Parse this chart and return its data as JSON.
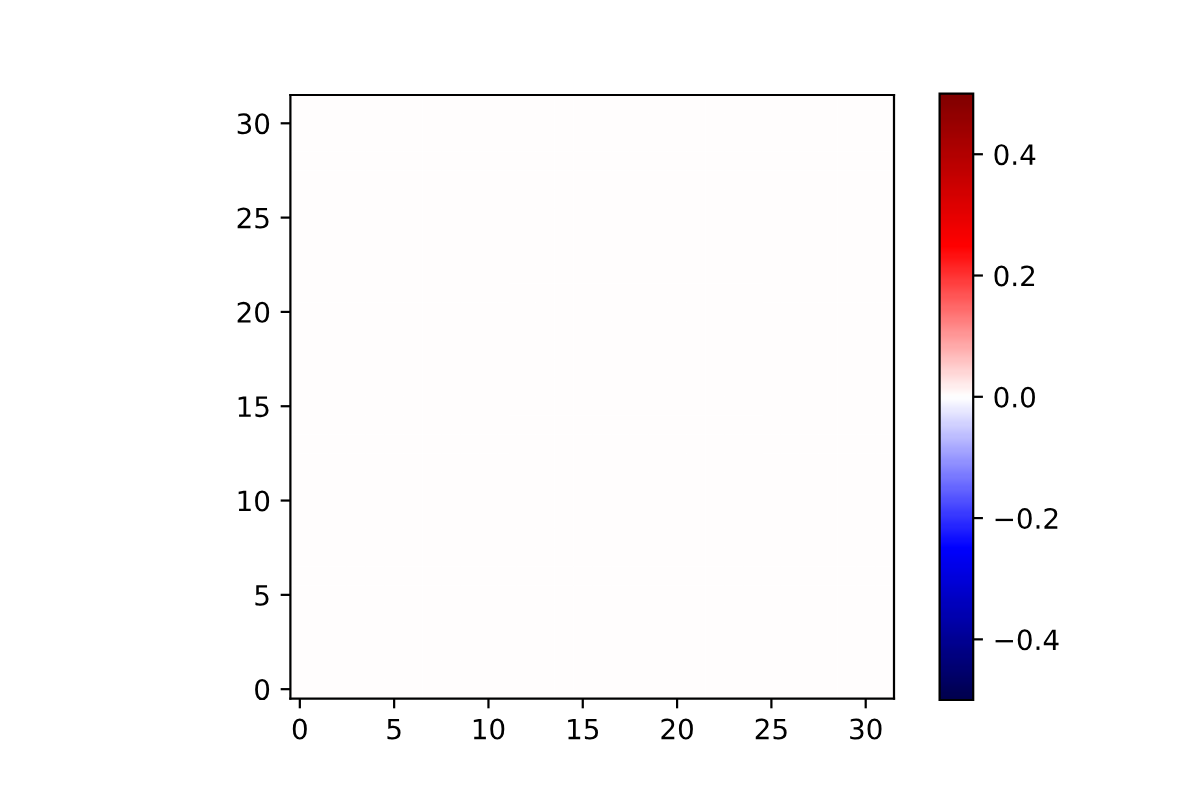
{
  "chart_data": {
    "type": "heatmap",
    "categories": [
      "0",
      null,
      null,
      null,
      null,
      "5",
      null,
      null,
      null,
      null,
      "10",
      null,
      null,
      null,
      null,
      "15",
      null,
      null,
      null,
      null,
      "20",
      null,
      null,
      null,
      null,
      "25",
      null,
      null,
      null,
      null,
      "30",
      null
    ],
    "y_categories": [
      null,
      "30",
      null,
      null,
      null,
      null,
      "25",
      null,
      null,
      null,
      null,
      "20",
      null,
      null,
      null,
      null,
      "15",
      null,
      null,
      null,
      null,
      "10",
      null,
      null,
      null,
      null,
      "5",
      null,
      null,
      null,
      null,
      "0"
    ],
    "cells": [
      [
        0,
        0,
        0,
        0,
        0,
        0,
        0,
        0,
        0,
        0,
        0,
        0,
        0,
        0,
        0,
        0,
        0,
        0,
        0,
        0,
        0,
        0,
        0,
        0,
        0,
        0,
        0,
        0,
        0,
        0,
        0,
        0
      ],
      [
        0,
        0,
        0,
        0,
        0,
        0,
        0,
        0,
        0,
        0,
        0,
        0,
        0,
        0,
        0,
        0,
        0,
        0,
        0,
        0,
        0,
        0,
        0,
        0,
        0,
        0,
        0,
        0,
        0,
        0,
        0,
        0
      ],
      [
        0,
        0,
        0,
        0,
        0,
        0,
        0,
        0,
        0,
        0,
        0,
        0,
        0,
        0,
        0,
        0,
        0,
        0,
        0,
        0,
        0,
        0,
        0,
        0,
        0,
        0,
        0,
        0,
        0,
        0,
        0,
        0
      ],
      [
        0,
        0,
        0,
        0,
        0,
        0,
        0,
        0,
        0,
        0,
        0,
        0,
        0,
        0,
        0,
        0,
        0,
        0,
        0,
        0,
        0,
        0,
        0,
        0,
        0,
        0,
        0,
        0,
        0,
        0,
        0,
        0
      ],
      [
        0,
        0,
        0,
        0,
        0,
        0,
        0,
        0,
        0,
        0,
        0,
        0,
        0,
        0,
        0,
        0,
        0,
        0,
        0,
        0,
        0,
        0,
        0,
        0,
        0,
        0,
        0,
        0,
        0,
        0,
        0,
        0
      ],
      [
        0,
        0,
        0,
        0,
        0,
        0,
        0,
        0,
        0,
        0,
        0,
        0,
        0,
        0,
        0,
        0,
        0,
        0,
        0,
        0,
        0,
        0,
        0,
        0,
        0,
        0,
        0,
        0,
        0,
        0,
        0,
        0
      ],
      [
        0,
        0,
        0,
        0,
        0,
        0,
        0,
        0,
        0,
        0,
        0,
        0,
        0,
        0,
        0,
        0,
        0,
        0,
        0,
        0,
        0,
        0,
        0,
        0,
        0,
        0,
        0,
        0,
        0,
        0,
        0,
        0
      ],
      [
        0,
        0,
        0,
        0,
        0,
        0,
        0,
        0,
        0,
        0,
        0,
        0,
        0,
        0,
        0,
        0,
        0,
        0,
        0,
        0,
        0,
        0,
        0,
        0,
        0,
        0,
        0,
        0,
        0,
        0,
        0,
        0
      ],
      [
        0,
        0,
        0,
        0,
        0,
        0,
        0,
        0,
        0,
        0,
        0,
        0,
        0,
        0,
        0,
        0,
        0,
        0,
        0,
        0,
        0,
        0,
        0,
        0,
        0,
        0,
        0,
        0,
        0,
        0,
        0,
        0
      ],
      [
        0,
        0,
        0,
        0,
        0,
        0,
        0,
        0,
        0,
        0,
        0,
        0,
        0,
        0,
        0,
        0,
        0,
        0,
        0,
        0,
        0,
        0,
        0,
        0,
        0,
        0,
        0,
        0,
        0,
        0,
        0,
        0
      ],
      [
        0,
        0,
        0,
        0,
        0,
        0,
        0,
        0,
        0,
        0,
        0,
        0,
        0,
        0,
        0,
        0,
        0,
        0,
        0,
        0,
        0,
        0,
        0,
        0,
        0,
        0,
        0,
        0,
        0,
        0,
        0,
        0
      ],
      [
        0,
        0,
        0,
        0,
        0,
        0,
        0,
        0,
        0,
        0,
        0,
        0,
        0,
        0,
        0,
        0,
        0,
        0,
        0,
        0,
        0,
        0,
        0,
        0,
        0,
        0,
        0,
        0,
        0,
        0,
        0,
        0
      ],
      [
        0,
        0,
        0,
        0,
        0,
        0,
        0,
        0,
        0,
        0,
        0,
        0,
        0,
        0,
        0,
        0,
        0,
        0,
        0,
        0,
        0,
        0,
        0,
        0,
        0,
        0,
        0,
        0,
        0,
        0,
        0,
        0
      ],
      [
        0,
        0,
        0,
        0,
        0,
        0,
        0,
        0,
        0,
        0,
        0,
        0,
        0,
        0,
        0,
        0,
        0,
        0,
        0,
        0,
        0,
        0,
        0,
        0,
        0,
        0,
        0,
        0,
        0,
        0,
        0,
        0
      ],
      [
        0,
        0,
        0,
        0,
        0,
        0,
        0,
        0,
        0,
        0,
        0,
        0,
        0,
        0,
        0,
        0,
        0,
        0,
        0,
        0,
        0,
        0,
        0,
        0,
        0,
        0,
        0,
        0,
        0,
        0,
        0,
        0
      ],
      [
        0,
        0,
        0,
        0,
        0,
        0,
        0,
        0,
        0,
        0,
        0,
        0,
        0,
        0,
        0,
        0,
        0,
        0,
        0,
        0,
        0,
        0,
        0,
        0,
        0,
        0,
        0,
        0,
        0,
        0,
        0,
        0
      ],
      [
        0,
        0,
        0,
        0,
        0,
        0,
        0,
        0,
        0,
        0,
        0,
        0,
        0,
        0,
        0,
        0,
        0,
        0,
        0,
        0,
        0,
        0,
        0,
        0,
        0,
        0,
        0,
        0,
        0,
        0,
        0,
        0
      ],
      [
        0,
        0,
        0,
        0,
        0,
        0,
        0,
        0,
        0,
        0,
        0,
        0,
        0,
        0,
        0,
        0,
        0,
        0,
        0,
        0,
        0,
        0,
        0,
        0,
        0,
        0,
        0,
        0,
        0,
        0,
        0,
        0
      ],
      [
        0,
        0,
        0,
        0,
        0,
        0,
        0,
        0,
        0,
        0,
        0,
        0,
        0,
        0,
        0,
        0,
        0,
        0,
        0,
        0,
        0,
        0,
        0,
        0,
        0,
        0,
        0,
        0,
        0,
        0,
        0,
        0
      ],
      [
        0,
        0,
        0,
        0,
        0,
        0,
        0,
        0,
        0,
        0,
        0,
        0,
        0,
        0,
        0,
        0,
        0,
        0,
        0,
        0,
        0,
        0,
        0,
        0,
        0,
        0,
        0,
        0,
        0,
        0,
        0,
        0
      ],
      [
        0,
        0,
        0,
        0,
        0,
        0,
        0,
        0,
        0,
        0,
        0,
        0,
        0,
        0,
        0,
        0,
        0,
        0,
        0,
        0,
        0,
        0,
        0,
        0,
        0,
        0,
        0,
        0,
        0,
        0,
        0,
        0
      ],
      [
        0,
        0,
        0,
        0,
        0,
        0,
        0,
        0,
        0,
        0,
        0,
        0,
        0,
        0,
        0,
        0,
        0,
        0,
        0,
        0,
        0,
        0,
        0,
        0,
        0,
        0,
        0,
        0,
        0,
        0,
        0,
        0
      ],
      [
        0,
        0,
        0,
        0,
        0,
        0,
        0,
        0,
        0,
        0,
        0,
        0,
        0,
        0,
        0,
        0,
        0,
        0,
        0,
        0,
        0,
        0,
        0,
        0,
        0,
        0,
        0,
        0,
        0,
        0,
        0,
        0
      ],
      [
        0,
        0,
        0,
        0,
        0,
        0,
        0,
        0,
        0,
        0,
        0,
        0,
        0,
        0,
        0,
        0,
        0,
        0,
        0,
        0,
        0,
        0,
        0,
        0,
        0,
        0,
        0,
        0,
        0,
        0,
        0,
        0
      ],
      [
        0,
        0,
        0,
        0,
        0,
        0,
        0,
        0,
        0,
        0,
        0,
        0,
        0,
        0,
        0,
        0,
        0,
        0,
        0,
        0,
        0,
        0,
        0,
        0,
        0,
        0,
        0,
        0,
        0,
        0,
        0,
        0
      ],
      [
        0,
        0,
        0,
        0,
        0,
        0,
        0,
        0,
        0,
        0,
        0,
        0,
        0,
        0,
        0,
        0,
        0,
        0,
        0,
        0,
        0,
        0,
        0,
        0,
        0,
        0,
        0,
        0,
        0,
        0,
        0,
        0
      ],
      [
        0,
        0,
        0,
        0,
        0,
        0,
        0,
        0,
        0,
        0,
        0,
        0,
        0,
        0,
        0,
        0,
        0,
        0,
        0,
        0,
        0,
        0,
        0,
        0,
        0,
        0,
        0,
        0,
        0,
        0,
        0,
        0
      ],
      [
        0,
        0,
        0,
        0,
        0,
        0,
        0,
        0,
        0,
        0,
        0,
        0,
        0,
        0,
        0,
        0,
        0,
        0,
        0,
        0,
        0,
        0,
        0,
        0,
        0,
        0,
        0,
        0,
        0,
        0,
        0,
        0
      ],
      [
        0,
        0,
        0,
        0,
        0,
        0,
        0,
        0,
        0,
        0,
        0,
        0,
        0,
        0,
        0,
        0,
        0,
        0,
        0,
        0,
        0,
        0,
        0,
        0,
        0,
        0,
        0,
        0,
        0,
        0,
        0,
        0
      ],
      [
        0,
        0,
        0,
        0,
        0,
        0,
        0,
        0,
        0,
        0,
        0,
        0,
        0,
        0,
        0,
        0,
        0,
        0,
        0,
        0,
        0,
        0,
        0,
        0,
        0,
        0,
        0,
        0,
        0,
        0,
        0,
        0
      ],
      [
        0,
        0,
        0,
        0,
        0,
        0,
        0,
        0,
        0,
        0,
        0,
        0,
        0,
        0,
        0,
        0,
        0,
        0,
        0,
        0,
        0,
        0,
        0,
        0,
        0,
        0,
        0,
        0,
        0,
        0,
        0,
        0
      ],
      [
        0,
        0,
        0,
        0,
        0,
        0,
        0,
        0,
        0,
        0,
        0,
        0,
        0,
        0,
        0,
        0,
        0,
        0,
        0,
        0,
        0,
        0,
        0,
        0,
        0,
        0,
        0,
        0,
        0,
        0,
        0,
        0
      ]
    ],
    "clim": [
      -0.5,
      0.5
    ],
    "cticks": [
      {
        "value": -0.4,
        "label": "−0.4"
      },
      {
        "value": -0.2,
        "label": "−0.2"
      },
      {
        "value": 0,
        "label": "0.0"
      },
      0.2,
      0.4
    ]
  }
}
